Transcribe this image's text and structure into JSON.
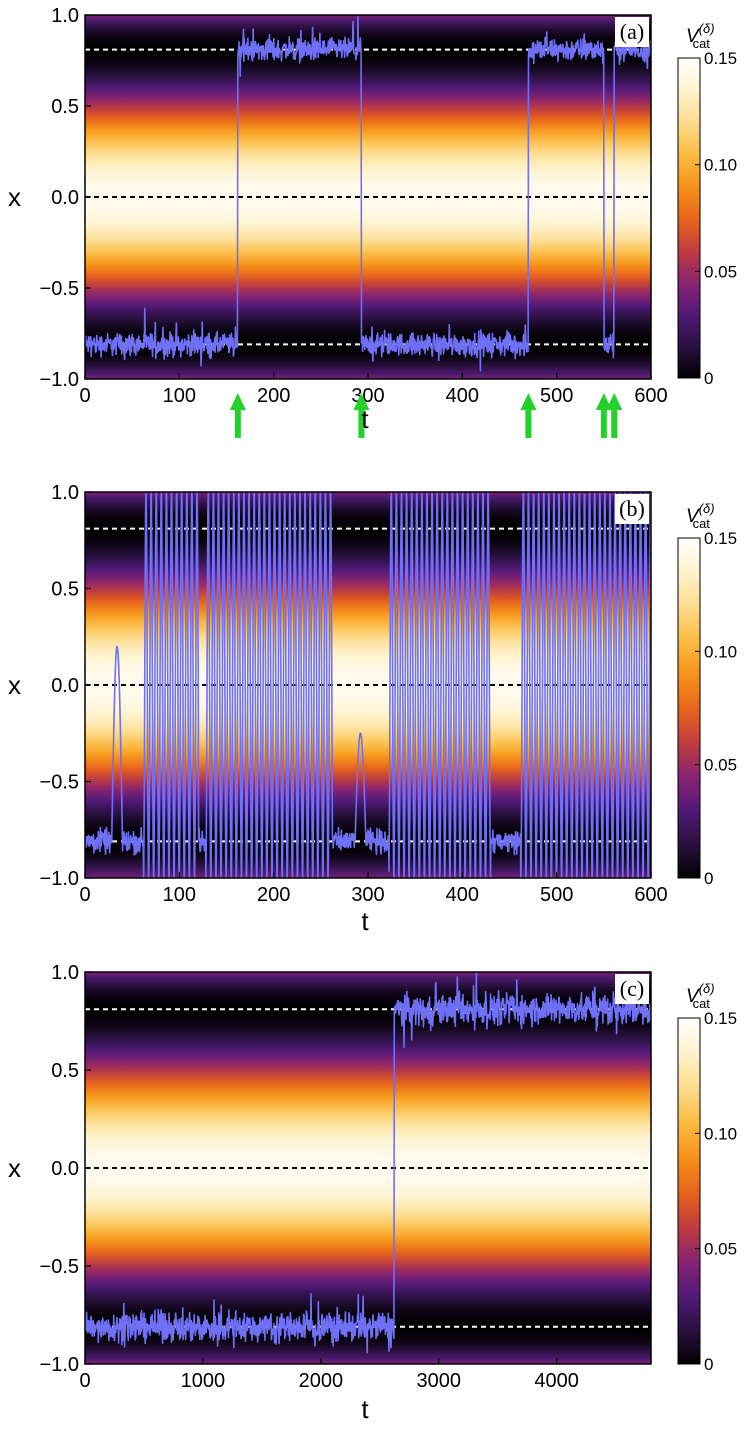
{
  "colors": {
    "trajectory": "#6f70f5",
    "arrow": "#22d12a",
    "minima_line": "#ffffff",
    "center_line": "#000000",
    "colormap": [
      "#000000",
      "#2a1140",
      "#521a78",
      "#8a2470",
      "#c23d3d",
      "#e8661b",
      "#f7931a",
      "#fbbd44",
      "#fddc8f",
      "#fff3cf",
      "#ffffff"
    ]
  },
  "colorbar": {
    "title": "V",
    "title_sub": "cat",
    "title_sup": "(δ)",
    "range": [
      0,
      0.15
    ],
    "ticks": [
      "0",
      "0.05",
      "0.10",
      "0.15"
    ]
  },
  "panels": [
    {
      "label": "(a)",
      "xlabel": "t",
      "ylabel": "x",
      "xlim": [
        0,
        600
      ],
      "ylim": [
        -1,
        1
      ],
      "xticks": [
        "0",
        "100",
        "200",
        "300",
        "400",
        "500",
        "600"
      ],
      "yticks": [
        "−1.0",
        "−0.5",
        "0.0",
        "0.5",
        "1.0"
      ],
      "minima": [
        -0.81,
        0.81
      ],
      "barrier": 0.0,
      "well_to_barrier_ratio": 0.0,
      "noise_amp": 0.09,
      "transitions": [
        162,
        293,
        470,
        550,
        561
      ],
      "arrows_at": [
        162,
        293,
        470,
        550,
        561
      ]
    },
    {
      "label": "(b)",
      "xlabel": "t",
      "ylabel": "x",
      "xlim": [
        0,
        600
      ],
      "ylim": [
        -1,
        1
      ],
      "xticks": [
        "0",
        "100",
        "200",
        "300",
        "400",
        "500",
        "600"
      ],
      "yticks": [
        "−1.0",
        "−0.5",
        "0.0",
        "0.5",
        "1.0"
      ],
      "minima": [
        -0.81,
        0.81
      ],
      "barrier": 0.0,
      "oscillation_intervals": [
        [
          62,
          120
        ],
        [
          128,
          262
        ],
        [
          322,
          430
        ],
        [
          462,
          600
        ]
      ]
    },
    {
      "label": "(c)",
      "xlabel": "t",
      "ylabel": "x",
      "xlim": [
        0,
        4800
      ],
      "ylim": [
        -1,
        1
      ],
      "xticks": [
        "0",
        "1000",
        "2000",
        "3000",
        "4000"
      ],
      "yticks": [
        "−1.0",
        "−0.5",
        "0.0",
        "0.5",
        "1.0"
      ],
      "minima": [
        -0.81,
        0.81
      ],
      "barrier": 0.0,
      "noise_amp": 0.11,
      "transitions": [
        2620
      ]
    }
  ]
}
